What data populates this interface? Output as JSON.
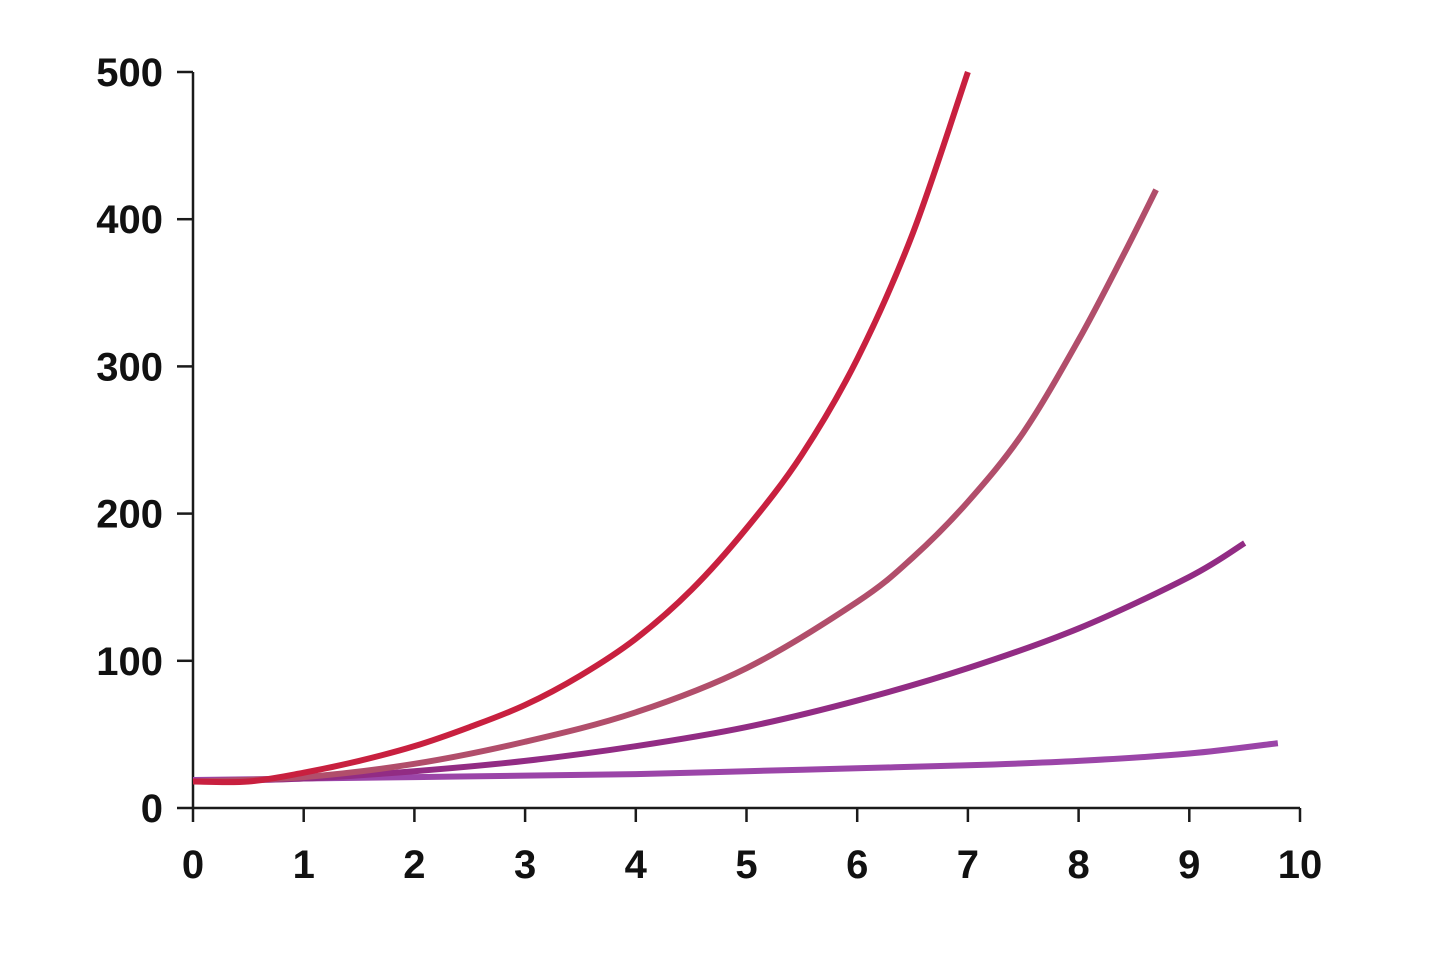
{
  "chart_data": {
    "type": "line",
    "title": "",
    "xlabel": "",
    "ylabel": "",
    "xlim": [
      0,
      10
    ],
    "ylim": [
      0,
      500
    ],
    "x_ticks": [
      0,
      1,
      2,
      3,
      4,
      5,
      6,
      7,
      8,
      9,
      10
    ],
    "y_ticks": [
      0,
      100,
      200,
      300,
      400,
      500
    ],
    "grid": false,
    "legend": "none",
    "series": [
      {
        "color": "#c8203f",
        "x": [
          0,
          0.5,
          1,
          1.5,
          2,
          2.5,
          3,
          3.5,
          4,
          4.5,
          5,
          5.5,
          6,
          6.5,
          7
        ],
        "y": [
          18,
          18,
          24,
          32,
          42,
          55,
          70,
          90,
          115,
          148,
          190,
          240,
          305,
          390,
          500
        ]
      },
      {
        "color": "#b14e6b",
        "x": [
          0,
          1,
          2,
          3,
          4,
          5,
          6,
          6.5,
          7,
          7.5,
          8,
          8.4,
          8.7
        ],
        "y": [
          18,
          21,
          30,
          45,
          65,
          95,
          140,
          170,
          208,
          255,
          318,
          375,
          420
        ]
      },
      {
        "color": "#922c84",
        "x": [
          0,
          1,
          2,
          3,
          4,
          5,
          6,
          7,
          8,
          9,
          9.5
        ],
        "y": [
          18,
          20,
          25,
          32,
          42,
          55,
          73,
          95,
          122,
          157,
          180
        ]
      },
      {
        "color": "#9b45a8",
        "x": [
          0,
          1,
          2,
          3,
          4,
          5,
          6,
          7,
          8,
          9,
          9.8
        ],
        "y": [
          19,
          20,
          21,
          22,
          23,
          25,
          27,
          29,
          32,
          37,
          44
        ]
      }
    ]
  }
}
